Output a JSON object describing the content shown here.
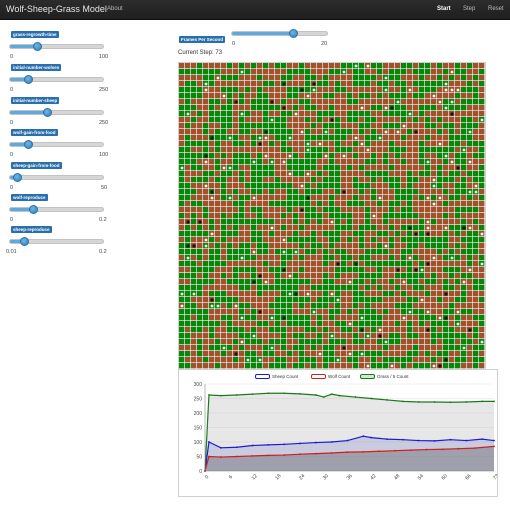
{
  "nav": {
    "brand": "Wolf-Sheep-Grass Model",
    "about": "About",
    "start": "Start",
    "step": "Step",
    "reset": "Reset"
  },
  "sliders": [
    {
      "label": "grass-regrowth-time",
      "min": "0",
      "max": "100",
      "fraction": 0.3
    },
    {
      "label": "initial-number-wolves",
      "min": "0",
      "max": "250",
      "fraction": 0.2
    },
    {
      "label": "initial-number-sheep",
      "min": "0",
      "max": "250",
      "fraction": 0.4
    },
    {
      "label": "wolf-gain-from-food",
      "min": "0",
      "max": "100",
      "fraction": 0.2
    },
    {
      "label": "sheep-gain-from-food",
      "min": "0",
      "max": "50",
      "fraction": 0.08
    },
    {
      "label": "wolf-reproduce",
      "min": "0",
      "max": "0.2",
      "fraction": 0.25
    },
    {
      "label": "sheep-reproduce",
      "min": "0.01",
      "max": "0.2",
      "fraction": 0.16
    }
  ],
  "fps": {
    "label": "Frames Per Second",
    "min": "0",
    "max": "20",
    "fraction": 0.65
  },
  "step": {
    "text": "Current Step: 73"
  },
  "colors": {
    "grass": "#0a860a",
    "dirt": "#a0522d",
    "sheep": "#ffffff",
    "wolf": "#111111",
    "sheep_line": "#1a1ad6",
    "wolf_line": "#cc1f1f",
    "grass_line": "#1a7a1a"
  },
  "chart_data": {
    "type": "line",
    "title": "",
    "xlabel": "",
    "ylabel": "",
    "xlim": [
      0,
      73
    ],
    "ylim": [
      0,
      300
    ],
    "xticks": [
      0,
      6,
      12,
      18,
      24,
      30,
      36,
      42,
      48,
      54,
      60,
      66,
      73
    ],
    "yticks": [
      0,
      50,
      100,
      150,
      200,
      250,
      300
    ],
    "legend_position": "top",
    "series": [
      {
        "name": "Sheep Count",
        "color": "#1a1ad6",
        "x": [
          0,
          1,
          4,
          8,
          12,
          16,
          20,
          24,
          28,
          32,
          36,
          40,
          42,
          46,
          50,
          54,
          58,
          62,
          66,
          70,
          73
        ],
        "y": [
          0,
          100,
          80,
          82,
          88,
          90,
          92,
          95,
          98,
          100,
          105,
          120,
          115,
          110,
          108,
          105,
          104,
          108,
          105,
          110,
          105
        ]
      },
      {
        "name": "Wolf Count",
        "color": "#cc1f1f",
        "x": [
          0,
          1,
          4,
          8,
          12,
          16,
          20,
          24,
          28,
          32,
          36,
          40,
          44,
          48,
          52,
          56,
          60,
          64,
          68,
          73
        ],
        "y": [
          0,
          50,
          48,
          50,
          52,
          54,
          55,
          58,
          60,
          62,
          65,
          66,
          68,
          70,
          72,
          74,
          75,
          77,
          79,
          85
        ]
      },
      {
        "name": "Grass / 5 Count",
        "color": "#1a7a1a",
        "x": [
          0,
          1,
          4,
          8,
          12,
          16,
          20,
          24,
          28,
          30,
          32,
          34,
          38,
          42,
          46,
          50,
          54,
          58,
          62,
          66,
          70,
          73
        ],
        "y": [
          0,
          262,
          260,
          262,
          265,
          268,
          268,
          266,
          262,
          255,
          265,
          260,
          255,
          250,
          245,
          240,
          238,
          238,
          237,
          238,
          240,
          240
        ]
      }
    ]
  }
}
